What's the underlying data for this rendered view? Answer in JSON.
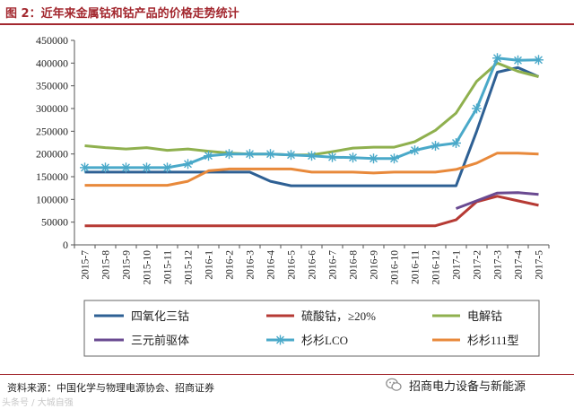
{
  "figure": {
    "title": "图 2：近年来金属钴和钴产品的价格走势统计",
    "source": "资料来源：中国化学与物理电源协会、招商证券",
    "brand": "招商电力设备与新能源",
    "watermark": "头条号 / 大城自强"
  },
  "chart_data": {
    "type": "line",
    "title": "",
    "xlabel": "",
    "ylabel": "",
    "ylim": [
      0,
      450000
    ],
    "yticks": [
      0,
      50000,
      100000,
      150000,
      200000,
      250000,
      300000,
      350000,
      400000,
      450000
    ],
    "ytick_labels": [
      "0",
      "50000",
      "100000",
      "150000",
      "200000",
      "250000",
      "300000",
      "350000",
      "400000",
      "450000"
    ],
    "grid": false,
    "legend_position": "bottom",
    "x_labels": [
      "2015-7",
      "2015-8",
      "2015-9",
      "2015-10",
      "2015-11",
      "2015-12",
      "2016-1",
      "2016-2",
      "2016-3",
      "2016-4",
      "2016-5",
      "2016-6",
      "2016-7",
      "2016-8",
      "2016-9",
      "2016-10",
      "2016-11",
      "2016-12",
      "2017-1",
      "2017-2",
      "2017-3",
      "2017-4",
      "2017-5"
    ],
    "series": [
      {
        "name": "四氧化三钴",
        "color": "#2e6094",
        "marker": "none",
        "x": [
          0,
          1,
          2,
          3,
          4,
          5,
          6,
          7,
          8,
          9,
          10,
          11,
          12,
          13,
          14,
          15,
          16,
          17,
          18,
          19,
          20,
          20.5,
          21,
          22
        ],
        "values": [
          160000,
          160000,
          160000,
          160000,
          160000,
          160000,
          160000,
          160000,
          160000,
          140000,
          130000,
          130000,
          130000,
          130000,
          130000,
          130000,
          130000,
          130000,
          130000,
          250000,
          380000,
          385000,
          390000,
          370000
        ]
      },
      {
        "name": "硫酸钴，≥20%",
        "color": "#b63a34",
        "marker": "none",
        "x": [
          0,
          1,
          2,
          3,
          4,
          5,
          6,
          7,
          8,
          9,
          10,
          11,
          12,
          13,
          14,
          15,
          16,
          17,
          18,
          19,
          20,
          21,
          22
        ],
        "values": [
          42000,
          42000,
          42000,
          42000,
          42000,
          42000,
          42000,
          42000,
          42000,
          42000,
          42000,
          42000,
          42000,
          42000,
          42000,
          42000,
          42000,
          42000,
          55000,
          95000,
          107000,
          97000,
          87000
        ]
      },
      {
        "name": "电解钴",
        "color": "#8fb04e",
        "marker": "none",
        "x": [
          0,
          1,
          2,
          3,
          4,
          5,
          6,
          7,
          8,
          9,
          10,
          11,
          12,
          13,
          14,
          15,
          16,
          17,
          18,
          19,
          20,
          21,
          22
        ],
        "values": [
          218000,
          214000,
          211000,
          214000,
          208000,
          211000,
          206000,
          202000,
          200000,
          200000,
          198000,
          198000,
          205000,
          213000,
          215000,
          215000,
          227000,
          252000,
          290000,
          360000,
          400000,
          382000,
          370000
        ]
      },
      {
        "name": "三元前驱体",
        "color": "#6a4a91",
        "marker": "none",
        "x": [
          18,
          19,
          20,
          21,
          22
        ],
        "values": [
          80000,
          97000,
          114000,
          115000,
          111000
        ]
      },
      {
        "name": "杉杉LCO",
        "color": "#4aa9c9",
        "marker": "star",
        "x": [
          0,
          1,
          2,
          3,
          4,
          5,
          6,
          7,
          8,
          9,
          10,
          11,
          12,
          13,
          14,
          15,
          16,
          17,
          18,
          19,
          20,
          21,
          22
        ],
        "values": [
          170000,
          170000,
          170000,
          170000,
          170000,
          178000,
          196000,
          200000,
          200000,
          200000,
          198000,
          196000,
          193000,
          192000,
          190000,
          190000,
          208000,
          218000,
          224000,
          300000,
          411000,
          406000,
          407000
        ]
      },
      {
        "name": "杉杉111型",
        "color": "#e8893b",
        "marker": "none",
        "x": [
          0,
          1,
          2,
          3,
          4,
          5,
          6,
          7,
          8,
          9,
          10,
          11,
          12,
          13,
          14,
          15,
          16,
          17,
          18,
          19,
          20,
          21,
          22
        ],
        "values": [
          131000,
          131000,
          131000,
          131000,
          131000,
          140000,
          163000,
          167000,
          167000,
          167000,
          167000,
          160000,
          160000,
          160000,
          158000,
          160000,
          160000,
          160000,
          166000,
          180000,
          202000,
          202000,
          200000
        ]
      }
    ],
    "legend_layout": [
      [
        0,
        1,
        2
      ],
      [
        3,
        4,
        5
      ]
    ]
  }
}
